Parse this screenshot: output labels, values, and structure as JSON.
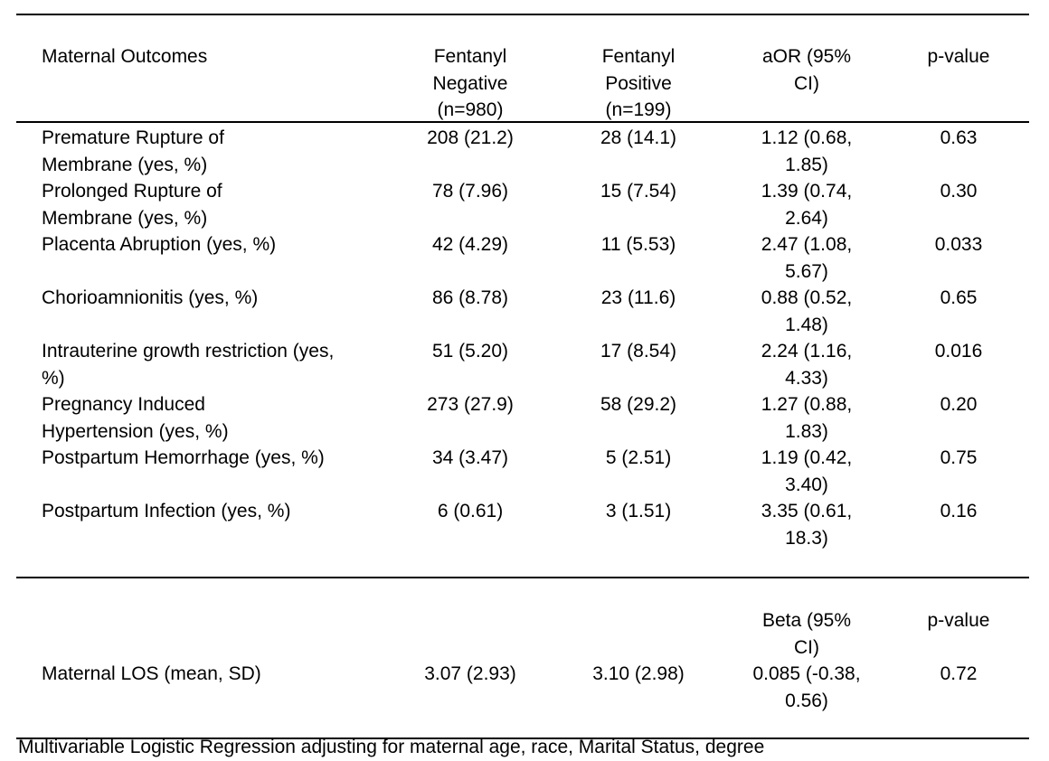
{
  "table": {
    "header": {
      "outcome": "Maternal Outcomes",
      "negative": "Fentanyl Negative (n=980)",
      "positive": "Fentanyl Positive (n=199)",
      "aor": "aOR (95% CI)",
      "pvalue": "p-value"
    },
    "rows": [
      {
        "outcome": "Premature Rupture of Membrane (yes, %)",
        "negative": "208 (21.2)",
        "positive": "28 (14.1)",
        "aor": "1.12 (0.68, 1.85)",
        "pvalue": "0.63"
      },
      {
        "outcome": "Prolonged Rupture of Membrane (yes, %)",
        "negative": "78 (7.96)",
        "positive": "15 (7.54)",
        "aor": "1.39 (0.74, 2.64)",
        "pvalue": "0.30"
      },
      {
        "outcome": "Placenta Abruption (yes, %)",
        "negative": "42 (4.29)",
        "positive": "11 (5.53)",
        "aor": "2.47 (1.08, 5.67)",
        "pvalue": "0.033"
      },
      {
        "outcome": "Chorioamnionitis (yes, %)",
        "negative": "86 (8.78)",
        "positive": "23 (11.6)",
        "aor": "0.88 (0.52, 1.48)",
        "pvalue": "0.65"
      },
      {
        "outcome": "Intrauterine growth restriction (yes, %)",
        "negative": "51 (5.20)",
        "positive": "17 (8.54)",
        "aor": "2.24 (1.16, 4.33)",
        "pvalue": "0.016"
      },
      {
        "outcome": "Pregnancy Induced Hypertension (yes, %)",
        "negative": "273 (27.9)",
        "positive": "58 (29.2)",
        "aor": "1.27 (0.88, 1.83)",
        "pvalue": "0.20"
      },
      {
        "outcome": "Postpartum Hemorrhage (yes, %)",
        "negative": "34 (3.47)",
        "positive": "5 (2.51)",
        "aor": "1.19 (0.42, 3.40)",
        "pvalue": "0.75"
      },
      {
        "outcome": "Postpartum Infection (yes, %)",
        "negative": "6 (0.61)",
        "positive": "3 (1.51)",
        "aor": "3.35 (0.61, 18.3)",
        "pvalue": "0.16"
      }
    ]
  },
  "los": {
    "beta_header": "Beta (95% CI)",
    "pvalue_header": "p-value",
    "outcome": "Maternal LOS (mean, SD)",
    "negative": "3.07 (2.93)",
    "positive": "3.10 (2.98)",
    "beta": "0.085 (-0.38, 0.56)",
    "pvalue": "0.72"
  },
  "footnote": "Multivariable Logistic Regression adjusting for maternal age, race, Marital Status, degree"
}
